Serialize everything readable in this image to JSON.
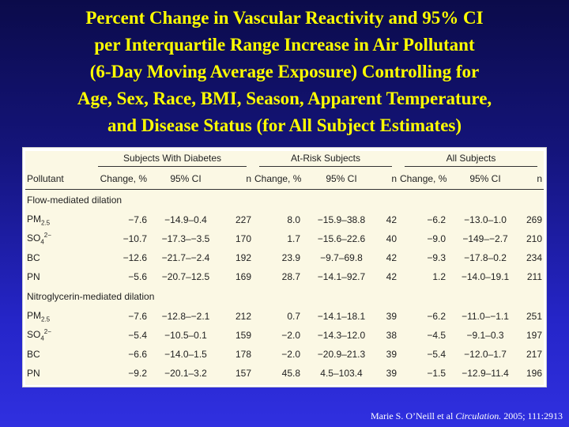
{
  "title": {
    "lines": [
      "Percent Change in Vascular Reactivity and 95% CI",
      "per Interquartile Range Increase in Air Pollutant",
      "(6-Day Moving Average Exposure) Controlling for",
      "Age, Sex, Race, BMI, Season, Apparent Temperature,",
      "and Disease Status (for All Subject Estimates)"
    ]
  },
  "table": {
    "groups": [
      "Subjects With Diabetes",
      "At-Risk Subjects",
      "All Subjects"
    ],
    "columns": {
      "pollutant": "Pollutant",
      "change": "Change, %",
      "ci": "95% CI",
      "n": "n"
    },
    "sections": [
      {
        "label": "Flow-mediated dilation",
        "rows": [
          {
            "base": "PM",
            "sub": "2.5",
            "sup": "",
            "d": [
              "−7.6",
              "−14.9–0.4",
              "227"
            ],
            "a": [
              "8.0",
              "−15.9–38.8",
              "42"
            ],
            "s": [
              "−6.2",
              "−13.0–1.0",
              "269"
            ]
          },
          {
            "base": "SO",
            "sub": "4",
            "sup": "2−",
            "d": [
              "−10.7",
              "−17.3–−3.5",
              "170"
            ],
            "a": [
              "1.7",
              "−15.6–22.6",
              "40"
            ],
            "s": [
              "−9.0",
              "−149–−2.7",
              "210"
            ]
          },
          {
            "base": "BC",
            "sub": "",
            "sup": "",
            "d": [
              "−12.6",
              "−21.7–−2.4",
              "192"
            ],
            "a": [
              "23.9",
              "−9.7–69.8",
              "42"
            ],
            "s": [
              "−9.3",
              "−17.8–0.2",
              "234"
            ]
          },
          {
            "base": "PN",
            "sub": "",
            "sup": "",
            "d": [
              "−5.6",
              "−20.7–12.5",
              "169"
            ],
            "a": [
              "28.7",
              "−14.1–92.7",
              "42"
            ],
            "s": [
              "1.2",
              "−14.0–19.1",
              "211"
            ]
          }
        ]
      },
      {
        "label": "Nitroglycerin-mediated dilation",
        "rows": [
          {
            "base": "PM",
            "sub": "2.5",
            "sup": "",
            "d": [
              "−7.6",
              "−12.8–−2.1",
              "212"
            ],
            "a": [
              "0.7",
              "−14.1–18.1",
              "39"
            ],
            "s": [
              "−6.2",
              "−11.0–−1.1",
              "251"
            ]
          },
          {
            "base": "SO",
            "sub": "4",
            "sup": "2−",
            "d": [
              "−5.4",
              "−10.5–0.1",
              "159"
            ],
            "a": [
              "−2.0",
              "−14.3–12.0",
              "38"
            ],
            "s": [
              "−4.5",
              "−9.1–0.3",
              "197"
            ]
          },
          {
            "base": "BC",
            "sub": "",
            "sup": "",
            "d": [
              "−6.6",
              "−14.0–1.5",
              "178"
            ],
            "a": [
              "−2.0",
              "−20.9–21.3",
              "39"
            ],
            "s": [
              "−5.4",
              "−12.0–1.7",
              "217"
            ]
          },
          {
            "base": "PN",
            "sub": "",
            "sup": "",
            "d": [
              "−9.2",
              "−20.1–3.2",
              "157"
            ],
            "a": [
              "45.8",
              "4.5–103.4",
              "39"
            ],
            "s": [
              "−1.5",
              "−12.9–11.4",
              "196"
            ]
          }
        ]
      }
    ]
  },
  "citation": {
    "author": "Marie S. O’Neill et al ",
    "journal": "Circulation.",
    "rest": " 2005; 111:2913"
  }
}
